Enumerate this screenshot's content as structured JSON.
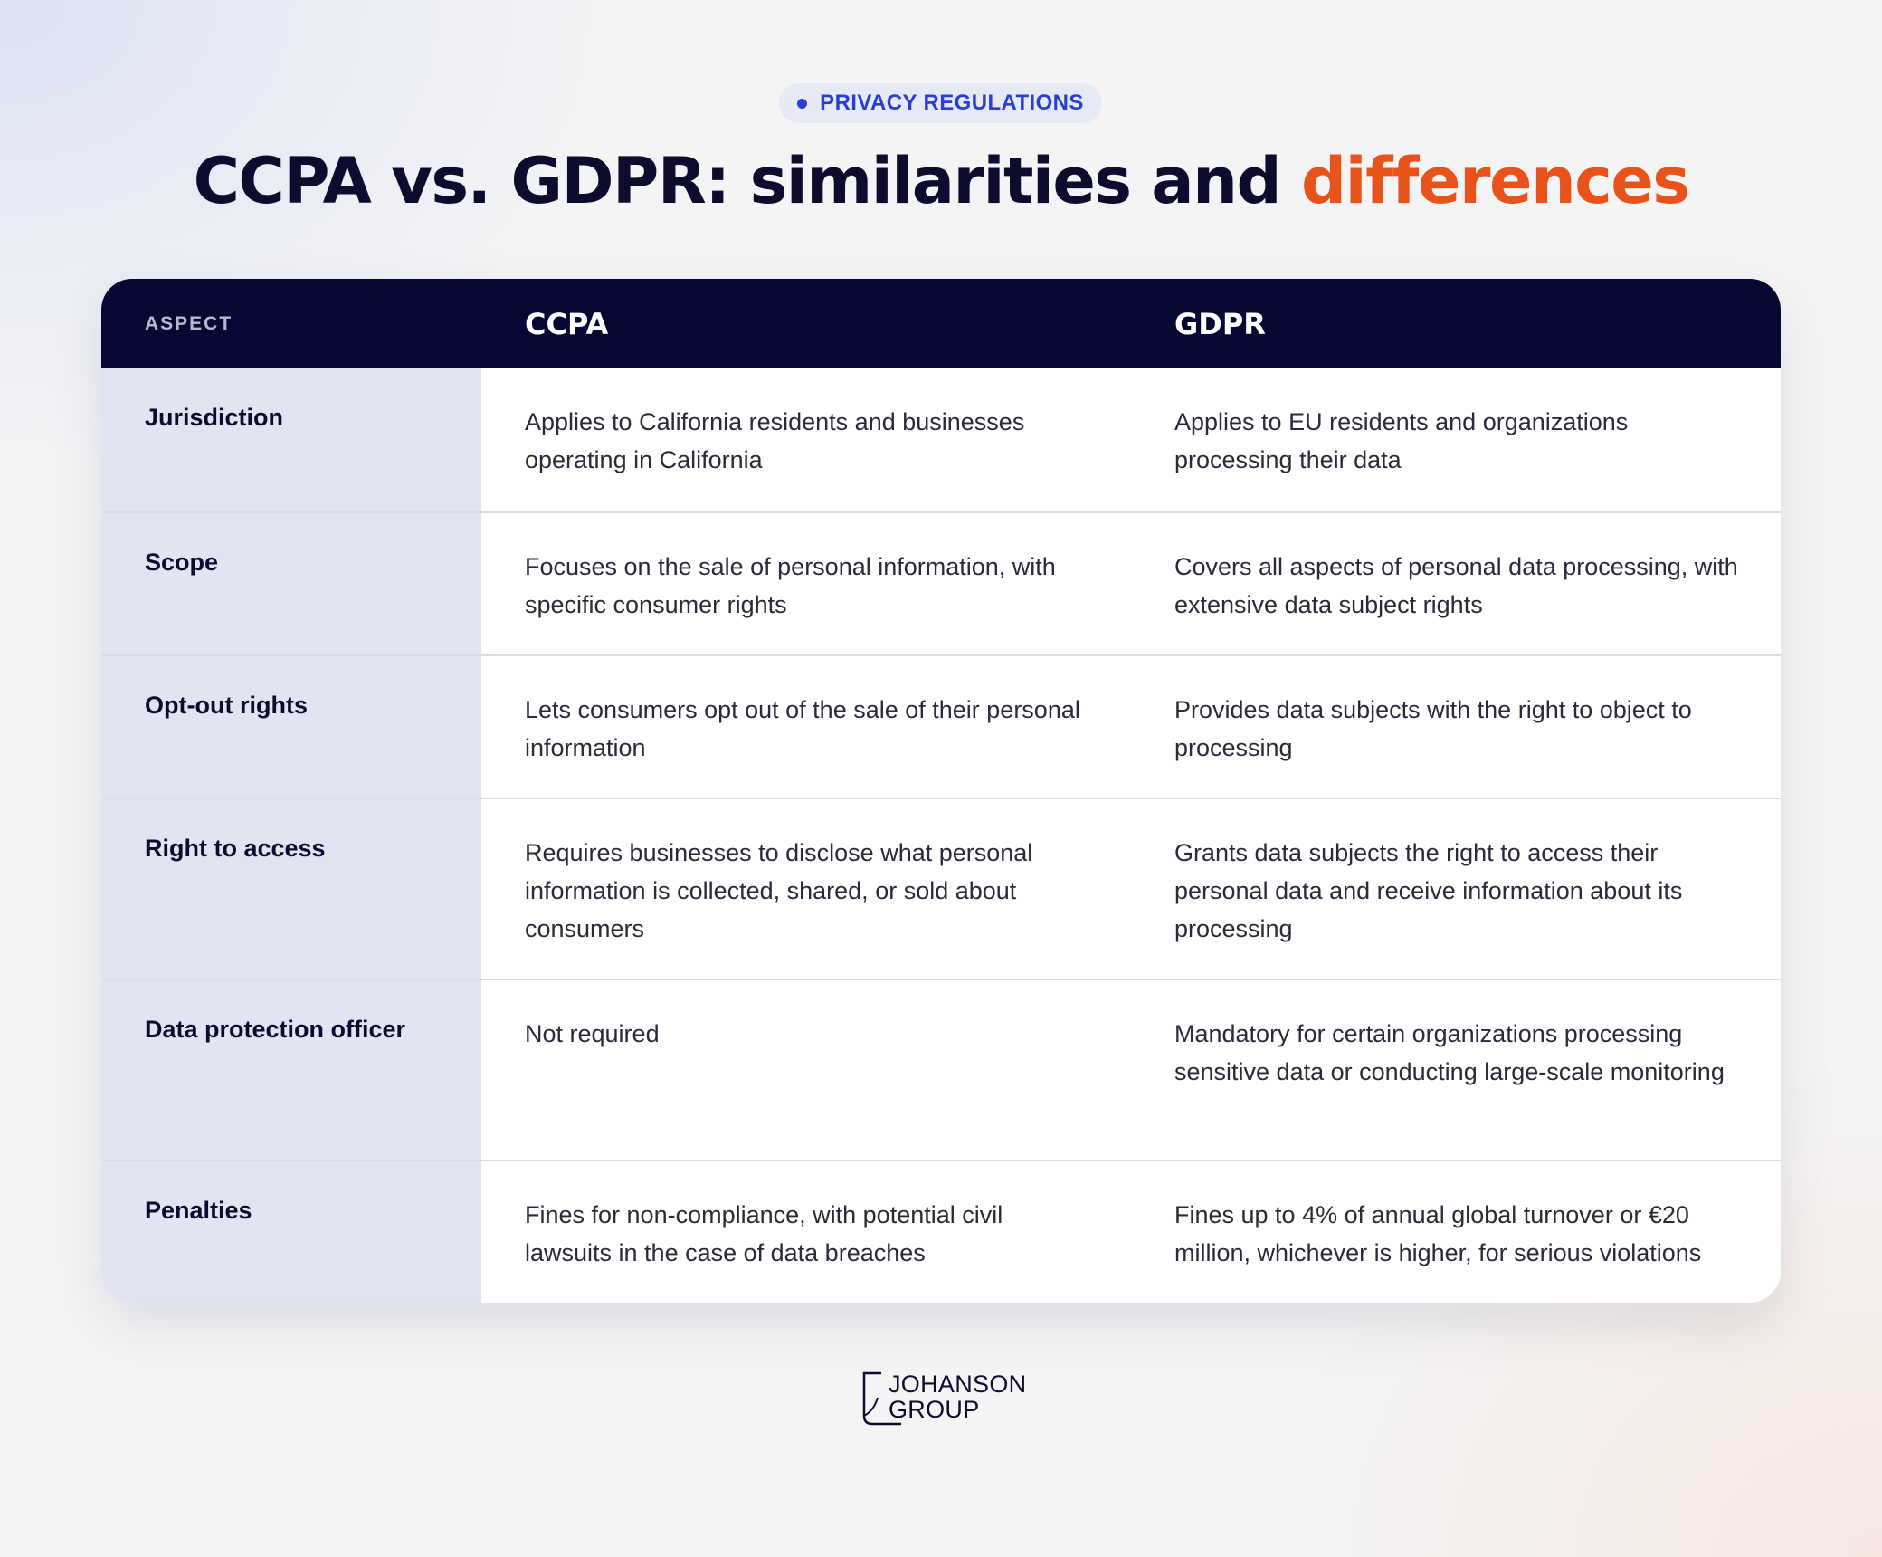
{
  "tag": {
    "label": "PRIVACY REGULATIONS"
  },
  "title": {
    "main": "CCPA vs. GDPR: similarities and ",
    "accent": "differences"
  },
  "colors": {
    "accent": "#e8531c",
    "tag_blue": "#2a3ed6",
    "header_bg": "#070733",
    "aspect_bg": "#e2e4f2"
  },
  "table": {
    "headers": {
      "aspect": "ASPECT",
      "ccpa": "CCPA",
      "gdpr": "GDPR"
    },
    "rows": [
      {
        "aspect": "Jurisdiction",
        "ccpa": "Applies to California residents and businesses operating in California",
        "gdpr": "Applies to EU residents and organizations processing their data"
      },
      {
        "aspect": "Scope",
        "ccpa": "Focuses on the sale of personal information, with specific consumer rights",
        "gdpr": "Covers all aspects of personal data processing, with extensive data subject rights"
      },
      {
        "aspect": "Opt-out rights",
        "ccpa": "Lets consumers opt out of the sale of their personal information",
        "gdpr": "Provides data subjects with the right to object to processing"
      },
      {
        "aspect": "Right to access",
        "ccpa": "Requires businesses to disclose what personal information is collected, shared, or sold about consumers",
        "gdpr": "Grants data subjects the right to access their personal data and receive information about its processing"
      },
      {
        "aspect": "Data protection officer",
        "ccpa": "Not required",
        "gdpr": "Mandatory for certain organizations processing sensitive data or conducting large-scale monitoring"
      },
      {
        "aspect": "Penalties",
        "ccpa": "Fines for non-compliance, with potential civil lawsuits in the case of data breaches",
        "gdpr": "Fines up to 4% of annual global turnover or €20 million, whichever is higher, for serious violations"
      }
    ]
  },
  "logo": {
    "line1": "JOHANSON",
    "line2": "GROUP",
    "icon": "johanson-group-logo-icon"
  }
}
